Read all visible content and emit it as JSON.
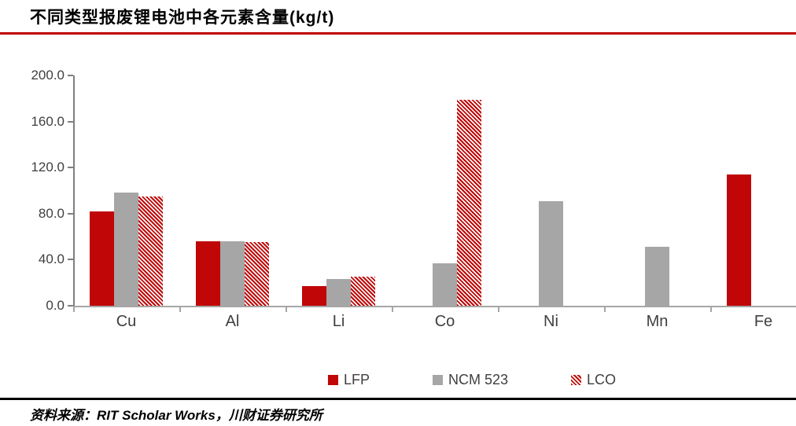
{
  "title": "不同类型报废锂电池中各元素含量(kg/t)",
  "source": "资料来源：RIT Scholar Works，川财证券研究所",
  "colors": {
    "series_red": "#c00606",
    "series_gray": "#a6a6a6",
    "title_rule": "#c00000",
    "footer_rule": "#000000",
    "axis_line": "#a6a6a6",
    "tick_text": "#3f3f3f"
  },
  "chart_data": {
    "type": "bar",
    "categories": [
      "Cu",
      "Al",
      "Li",
      "Co",
      "Ni",
      "Mn",
      "Fe"
    ],
    "series": [
      {
        "name": "LFP",
        "style": "solid-red",
        "values": [
          82,
          56,
          17,
          0,
          0,
          0,
          114
        ]
      },
      {
        "name": "NCM 523",
        "style": "solid-gray",
        "values": [
          98,
          56,
          23,
          37,
          91,
          51,
          0
        ]
      },
      {
        "name": "LCO",
        "style": "hatched-red",
        "values": [
          95,
          55,
          25,
          179,
          0,
          0,
          0
        ]
      }
    ],
    "title": "不同类型报废锂电池中各元素含量(kg/t)",
    "xlabel": "",
    "ylabel": "",
    "ylim": [
      0,
      200
    ],
    "ytick_labels": [
      "0.0",
      "40.0",
      "80.0",
      "120.0",
      "160.0",
      "200.0"
    ],
    "ytick_values": [
      0,
      40,
      80,
      120,
      160,
      200
    ],
    "grid": false,
    "legend_position": "bottom"
  }
}
